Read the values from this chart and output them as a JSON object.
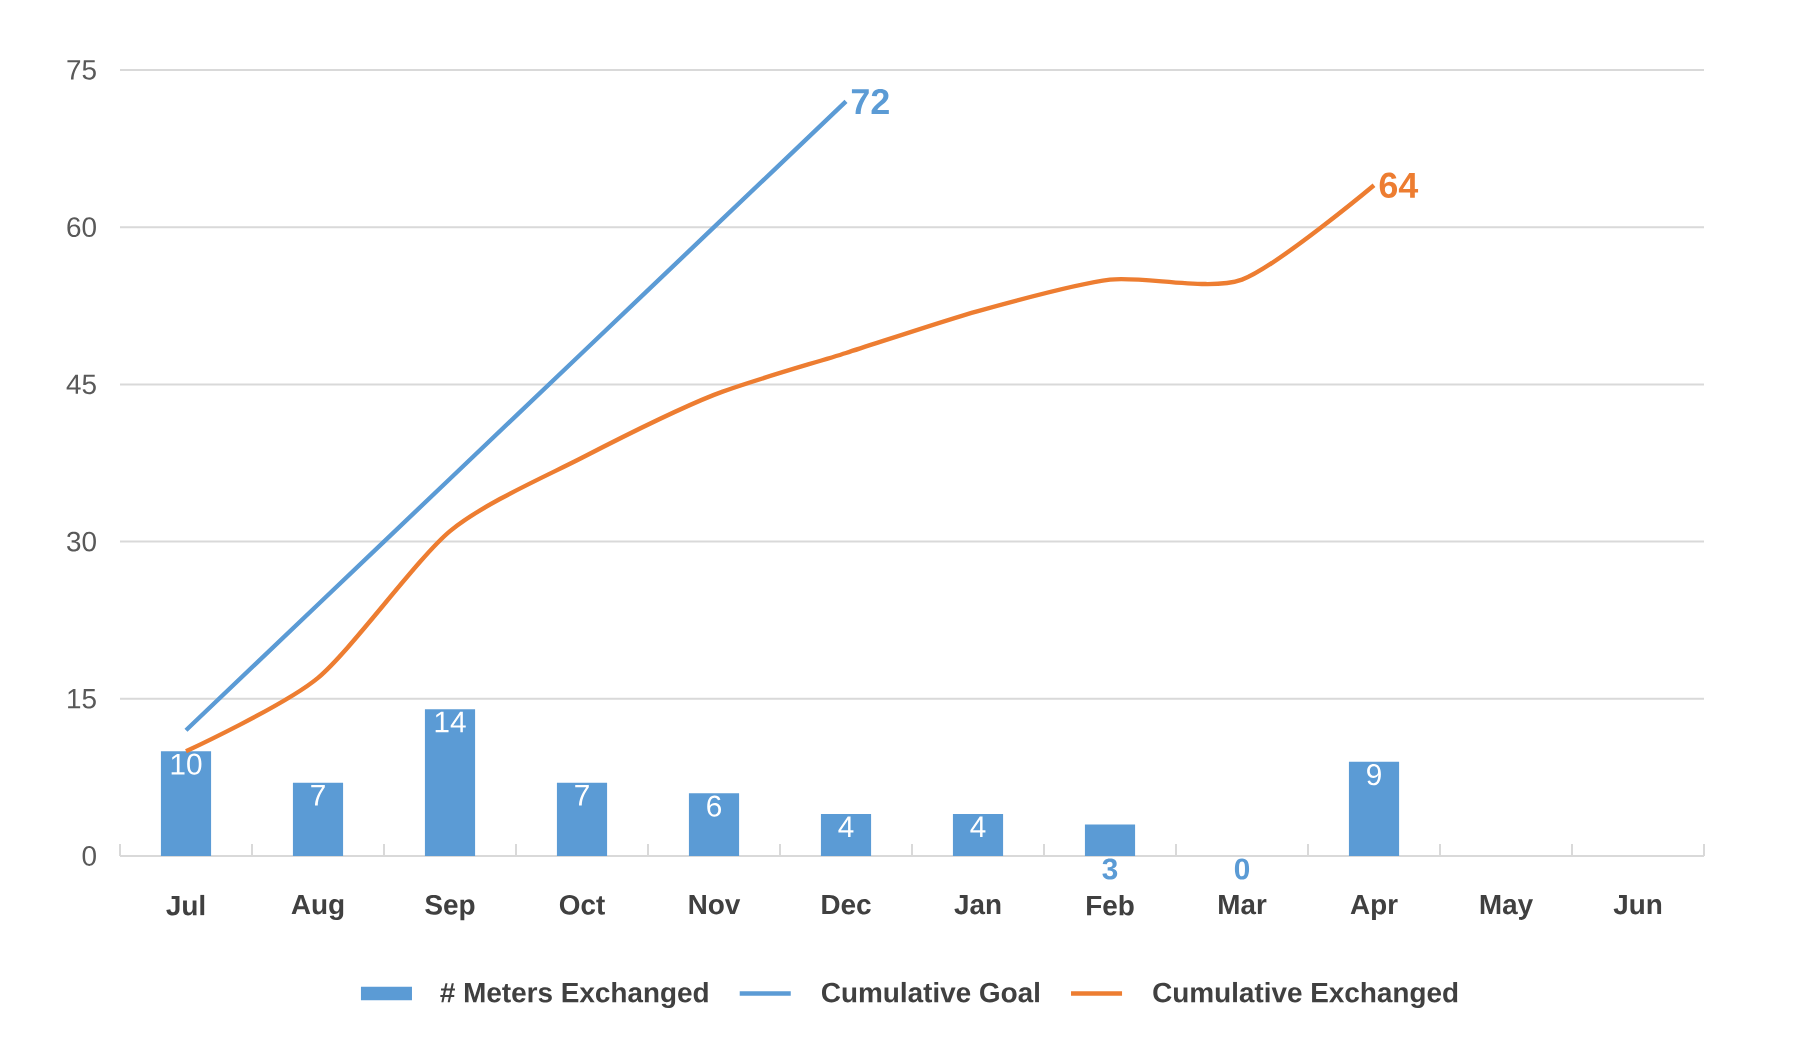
{
  "chart_data": {
    "type": "bar",
    "categories": [
      "Jul",
      "Aug",
      "Sep",
      "Oct",
      "Nov",
      "Dec",
      "Jan",
      "Feb",
      "Mar",
      "Apr",
      "May",
      "Jun"
    ],
    "series": [
      {
        "name": "# Meters Exchanged",
        "type": "bar",
        "color": "#5b9bd5",
        "values": [
          10,
          7,
          14,
          7,
          6,
          4,
          4,
          3,
          0,
          9,
          null,
          null
        ],
        "value_labels": [
          "10",
          "7",
          "14",
          "7",
          "6",
          "4",
          "4",
          "3",
          "0",
          "9",
          null,
          null
        ]
      },
      {
        "name": "Cumulative Goal",
        "type": "line",
        "color": "#5b9bd5",
        "values": [
          12,
          24,
          36,
          48,
          60,
          72,
          null,
          null,
          null,
          null,
          null,
          null
        ],
        "value_labels": [
          null,
          null,
          null,
          null,
          null,
          "72",
          null,
          null,
          null,
          null,
          null,
          null
        ]
      },
      {
        "name": "Cumulative Exchanged",
        "type": "line",
        "color": "#ed7d31",
        "values": [
          10,
          17,
          31,
          38,
          44,
          48,
          52,
          55,
          55,
          64,
          null,
          null
        ],
        "value_labels": [
          null,
          null,
          null,
          null,
          null,
          null,
          null,
          null,
          null,
          "64",
          null,
          null
        ]
      }
    ],
    "ylim": [
      0,
      75
    ],
    "yticks": [
      0,
      15,
      30,
      45,
      60,
      75
    ],
    "grid": "y",
    "legend": "bottom"
  }
}
